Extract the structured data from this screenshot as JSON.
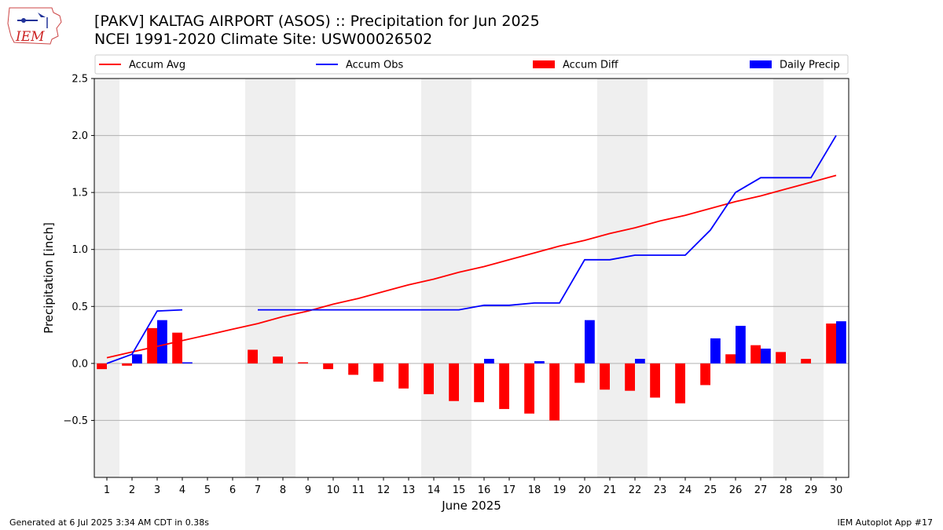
{
  "header": {
    "title_line1": "[PAKV] KALTAG AIRPORT (ASOS) :: Precipitation for Jun 2025",
    "title_line2": "NCEI 1991-2020 Climate Site: USW00026502"
  },
  "logo": {
    "text": "IEM"
  },
  "footer": {
    "generated": "Generated at 6 Jul 2025 3:34 AM CDT in 0.38s",
    "app": "IEM Autoplot App #17"
  },
  "colors": {
    "accum_avg": "#ff0000",
    "accum_obs": "#0000ff",
    "accum_diff": "#ff0000",
    "daily_precip": "#0000ff",
    "weekend_band": "#efefef",
    "grid": "#b0b0b0"
  },
  "chart_data": {
    "type": "bar",
    "xlabel": "June 2025",
    "ylabel": "Precipitation [inch]",
    "ylim": [
      -1.0,
      2.5
    ],
    "yticks": [
      -0.5,
      0.0,
      0.5,
      1.0,
      1.5,
      2.0,
      2.5
    ],
    "ytick_labels": [
      "−0.5",
      "0.0",
      "0.5",
      "1.0",
      "1.5",
      "2.0",
      "2.5"
    ],
    "grid": "horizontal",
    "legend_placement": "top",
    "days": [
      "1",
      "2",
      "3",
      "4",
      "5",
      "6",
      "7",
      "8",
      "9",
      "10",
      "11",
      "12",
      "13",
      "14",
      "15",
      "16",
      "17",
      "18",
      "19",
      "20",
      "21",
      "22",
      "23",
      "24",
      "25",
      "26",
      "27",
      "28",
      "29",
      "30"
    ],
    "weekend_days": [
      1,
      7,
      8,
      14,
      15,
      21,
      22,
      28,
      29
    ],
    "legend": [
      "Accum Avg",
      "Accum Obs",
      "Accum Diff",
      "Daily Precip"
    ],
    "series": [
      {
        "name": "Accum Avg",
        "kind": "line",
        "values": [
          0.05,
          0.1,
          0.15,
          0.2,
          0.25,
          0.3,
          0.35,
          0.41,
          0.46,
          0.52,
          0.57,
          0.63,
          0.69,
          0.74,
          0.8,
          0.85,
          0.91,
          0.97,
          1.03,
          1.08,
          1.14,
          1.19,
          1.25,
          1.3,
          1.36,
          1.42,
          1.47,
          1.53,
          1.59,
          1.65
        ]
      },
      {
        "name": "Accum Obs",
        "kind": "line",
        "values": [
          0.0,
          0.08,
          0.46,
          0.47,
          null,
          null,
          0.47,
          0.47,
          0.47,
          0.47,
          0.47,
          0.47,
          0.47,
          0.47,
          0.47,
          0.51,
          0.51,
          0.53,
          0.53,
          0.91,
          0.91,
          0.95,
          0.95,
          0.95,
          1.17,
          1.5,
          1.63,
          1.63,
          1.63,
          2.0
        ]
      },
      {
        "name": "Accum Diff",
        "kind": "bar",
        "values": [
          -0.05,
          -0.02,
          0.31,
          0.27,
          null,
          null,
          0.12,
          0.06,
          0.01,
          -0.05,
          -0.1,
          -0.16,
          -0.22,
          -0.27,
          -0.33,
          -0.34,
          -0.4,
          -0.44,
          -0.5,
          -0.17,
          -0.23,
          -0.24,
          -0.3,
          -0.35,
          -0.19,
          0.08,
          0.16,
          0.1,
          0.04,
          0.35
        ]
      },
      {
        "name": "Daily Precip",
        "kind": "bar",
        "values": [
          0.0,
          0.08,
          0.38,
          0.01,
          null,
          null,
          0.0,
          0.0,
          0.0,
          0.0,
          0.0,
          0.0,
          0.0,
          0.0,
          0.0,
          0.04,
          0.0,
          0.02,
          0.0,
          0.38,
          0.0,
          0.04,
          0.0,
          0.0,
          0.22,
          0.33,
          0.13,
          0.0,
          0.0,
          0.37
        ]
      }
    ]
  }
}
